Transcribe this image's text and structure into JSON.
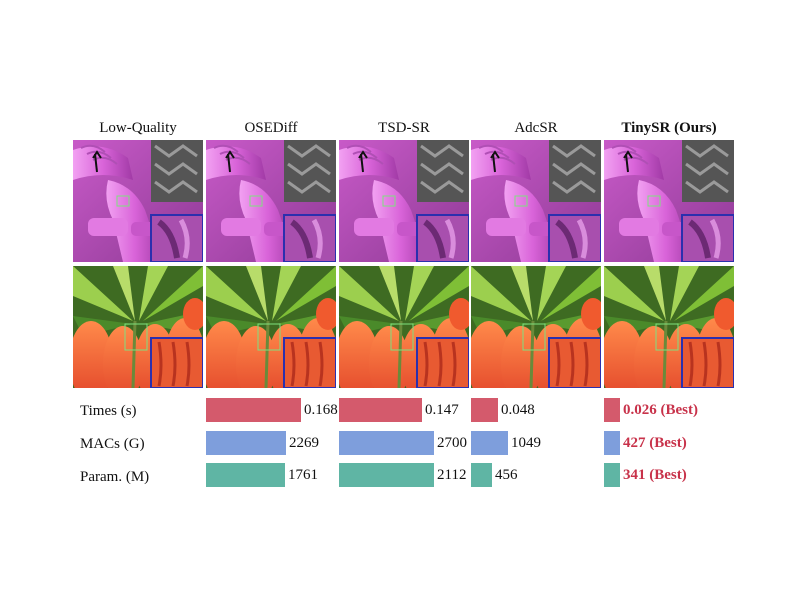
{
  "figure": {
    "methods": [
      "Low-Quality",
      "OSEDiff",
      "TSD-SR",
      "AdcSR",
      "TinySR (Ours)"
    ],
    "highlight_method": "TinySR (Ours)",
    "rows": [
      "pipe",
      "flower"
    ]
  },
  "metrics": [
    {
      "key": "times",
      "label": "Times (s)",
      "color": "#d45a6c",
      "values": [
        "0.168",
        "0.147",
        "0.048",
        "0.026 (Best)"
      ],
      "numeric": [
        0.168,
        0.147,
        0.048,
        0.026
      ]
    },
    {
      "key": "macs",
      "label": "MACs (G)",
      "color": "#7e9edc",
      "values": [
        "2269",
        "2700",
        "1049",
        "427 (Best)"
      ],
      "numeric": [
        2269,
        2700,
        1049,
        427
      ]
    },
    {
      "key": "param",
      "label": "Param.  (M)",
      "color": "#5fb5a4",
      "values": [
        "1761",
        "2112",
        "456",
        "341 (Best)"
      ],
      "numeric": [
        1761,
        2112,
        456,
        341
      ]
    }
  ],
  "colors": {
    "best_text": "#c8324a",
    "inset_border": "#2b2fae",
    "crop_box": "#7fe07f"
  }
}
